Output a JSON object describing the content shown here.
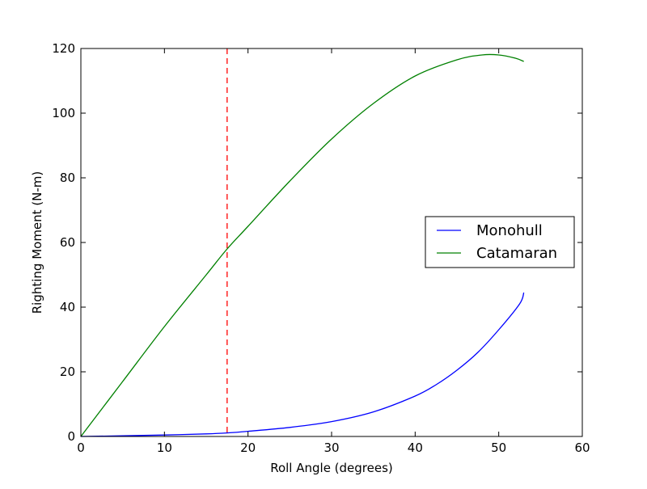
{
  "chart_data": {
    "type": "line",
    "title": "",
    "xlabel": "Roll Angle (degrees)",
    "ylabel": "Righting Moment (N-m)",
    "xlim": [
      0,
      60
    ],
    "ylim": [
      0,
      120
    ],
    "xticks": [
      0,
      10,
      20,
      30,
      40,
      50,
      60
    ],
    "yticks": [
      0,
      20,
      40,
      60,
      80,
      100,
      120
    ],
    "grid": false,
    "legend_position": "center-right",
    "series": [
      {
        "name": "Monohull",
        "color": "#0000ff",
        "x": [
          0,
          5,
          10,
          15,
          17.5,
          20,
          25,
          30,
          35,
          40,
          42.5,
          45,
          47.5,
          50,
          52.5,
          53
        ],
        "y": [
          0,
          0.2,
          0.45,
          0.8,
          1.1,
          1.6,
          2.8,
          4.6,
          7.6,
          12.5,
          16,
          20.5,
          26,
          33,
          41,
          44.5
        ]
      },
      {
        "name": "Catamaran",
        "color": "#008000",
        "x": [
          0,
          5,
          10,
          15,
          17.5,
          20,
          25,
          30,
          35,
          40,
          45,
          48,
          50,
          52,
          53
        ],
        "y": [
          0,
          17,
          34,
          50,
          58,
          65,
          79,
          92,
          103,
          111.5,
          116.5,
          118,
          118,
          117,
          116
        ]
      }
    ],
    "annotations": [
      {
        "type": "vline",
        "x": 17.5,
        "color": "#ff0000",
        "style": "dashed"
      }
    ]
  }
}
